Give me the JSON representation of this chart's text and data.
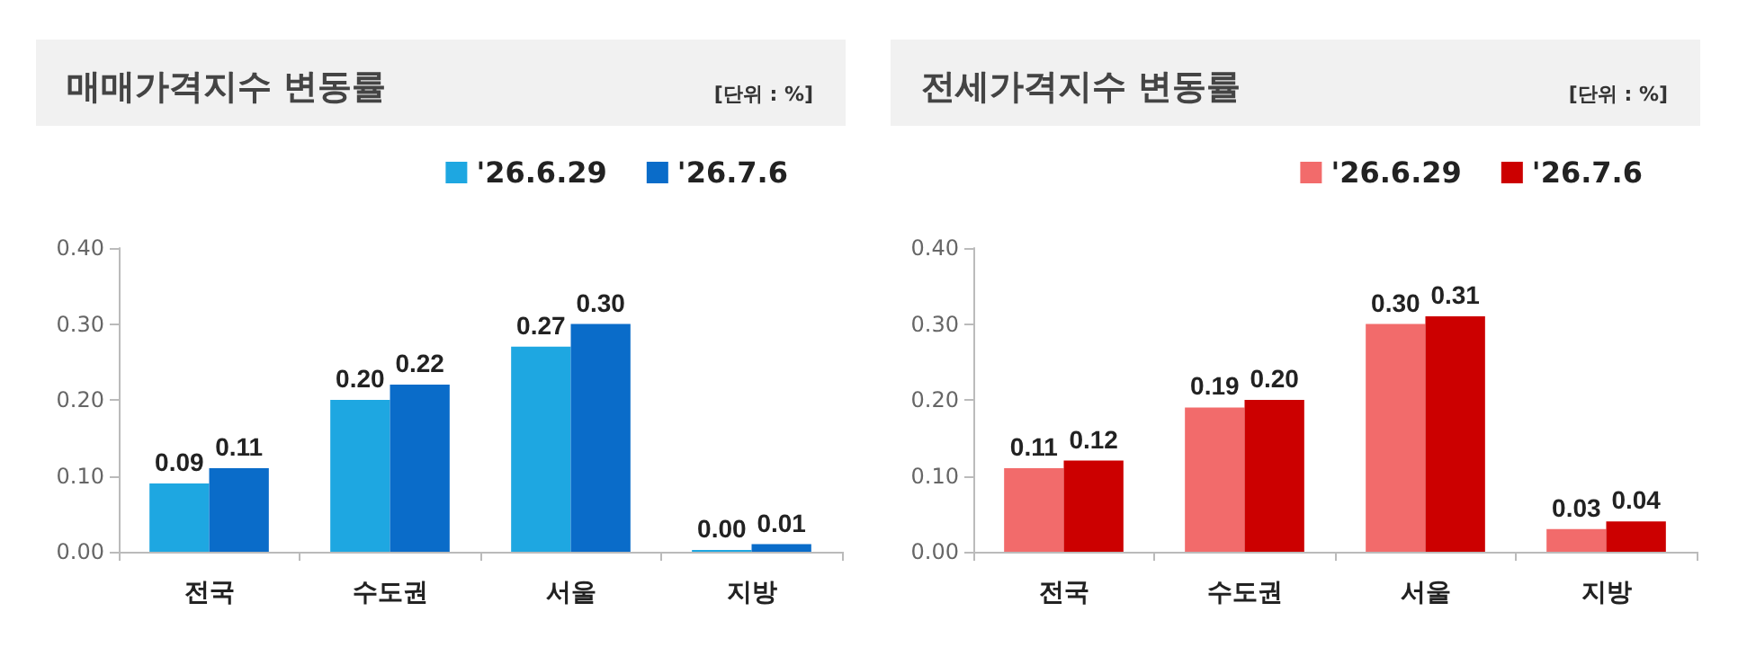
{
  "chart_data": [
    {
      "type": "bar",
      "title": "매매가격지수 변동률",
      "subtitle": "[단위 : %]",
      "categories": [
        "전국",
        "수도권",
        "서울",
        "지방"
      ],
      "series": [
        {
          "name": "'26.6.29",
          "color": "#1ea7e1",
          "values": [
            0.09,
            0.2,
            0.27,
            0
          ],
          "value_labels": [
            "0.09",
            "0.20",
            "0.27",
            "0.00"
          ]
        },
        {
          "name": "'26.7.6",
          "color": "#0a6cc9",
          "values": [
            0.11,
            0.22,
            0.3,
            0.01
          ],
          "value_labels": [
            "0.11",
            "0.22",
            "0.30",
            "0.01"
          ]
        }
      ],
      "ylim": [
        0,
        0.4
      ],
      "yticks": [
        {
          "value": 0,
          "label": "0.00"
        },
        {
          "value": 0.1,
          "label": "0.10"
        },
        {
          "value": 0.2,
          "label": "0.20"
        },
        {
          "value": 0.3,
          "label": "0.30"
        },
        {
          "value": 0.4,
          "label": "0.40"
        }
      ],
      "grid": false,
      "legend": "top right"
    },
    {
      "type": "bar",
      "title": "전세가격지수 변동률",
      "subtitle": "[단위 : %]",
      "categories": [
        "전국",
        "수도권",
        "서울",
        "지방"
      ],
      "series": [
        {
          "name": "'26.6.29",
          "color": "#f26b6b",
          "values": [
            0.11,
            0.19,
            0.3,
            0.03
          ],
          "value_labels": [
            "0.11",
            "0.19",
            "0.30",
            "0.03"
          ]
        },
        {
          "name": "'26.7.6",
          "color": "#cc0000",
          "values": [
            0.12,
            0.2,
            0.31,
            0.04
          ],
          "value_labels": [
            "0.12",
            "0.20",
            "0.31",
            "0.04"
          ]
        }
      ],
      "ylim": [
        0,
        0.4
      ],
      "yticks": [
        {
          "value": 0,
          "label": "0.00"
        },
        {
          "value": 0.1,
          "label": "0.10"
        },
        {
          "value": 0.2,
          "label": "0.20"
        },
        {
          "value": 0.3,
          "label": "0.30"
        },
        {
          "value": 0.4,
          "label": "0.40"
        }
      ],
      "grid": false,
      "legend": "top right"
    }
  ]
}
